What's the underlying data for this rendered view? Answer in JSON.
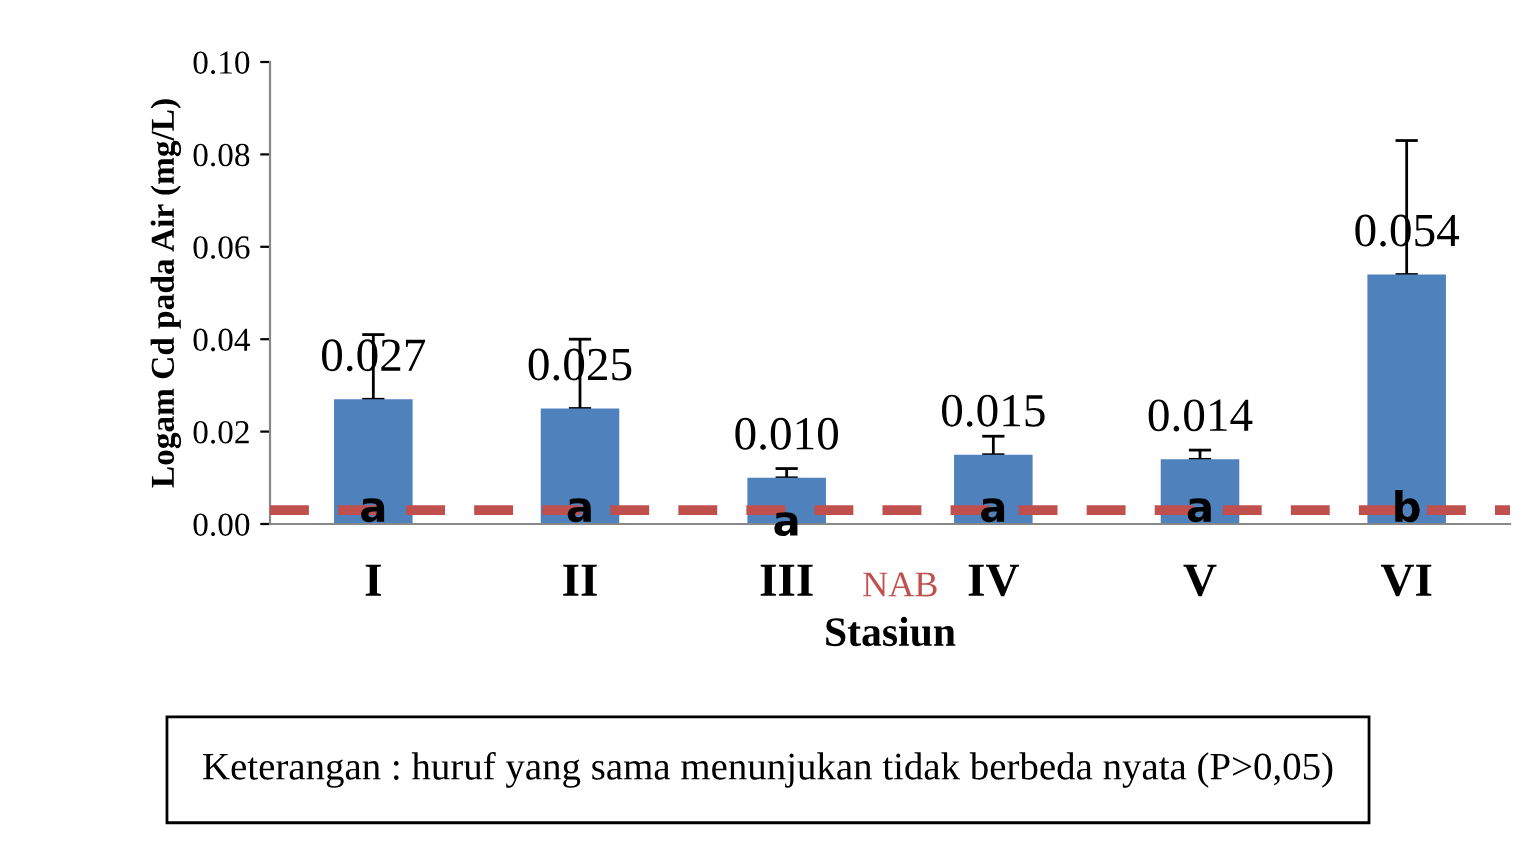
{
  "chart_data": {
    "type": "bar",
    "xlabel": "Stasiun",
    "ylabel": "Logam Cd pada Air (mg/L)",
    "categories": [
      "I",
      "II",
      "III",
      "IV",
      "V",
      "VI"
    ],
    "values": [
      0.027,
      0.025,
      0.01,
      0.015,
      0.014,
      0.054
    ],
    "color": "#4f81bd",
    "errors": [
      [
        0.027,
        0.041
      ],
      [
        0.025,
        0.04
      ],
      [
        0.01,
        0.012
      ],
      [
        0.015,
        0.019
      ],
      [
        0.014,
        0.016
      ],
      [
        0.054,
        0.083
      ]
    ],
    "value_labels": [
      "0.027",
      "0.025",
      "0.010",
      "0.015",
      "0.014",
      "0.054"
    ],
    "ylim": [
      0,
      0.1
    ],
    "yticks": [
      {
        "value": 0,
        "label": "0.00"
      },
      {
        "value": 0.02,
        "label": "0.02"
      },
      {
        "value": 0.04,
        "label": "0.04"
      },
      {
        "value": 0.06,
        "label": "0.06"
      },
      {
        "value": 0.08,
        "label": "0.08"
      },
      {
        "value": 0.1,
        "label": "0.10"
      }
    ],
    "ref_lines": [
      {
        "axis": "y",
        "value": 0.003,
        "label": "NAB",
        "color": "#c0504d",
        "line_style": "dashed"
      }
    ],
    "annotations": [
      {
        "text": "a",
        "x": "I",
        "y": 0.003
      },
      {
        "text": "a",
        "x": "II",
        "y": 0.003
      },
      {
        "text": "a",
        "x": "III",
        "y": 0
      },
      {
        "text": "a",
        "x": "IV",
        "y": 0.003
      },
      {
        "text": "a",
        "x": "V",
        "y": 0.003
      },
      {
        "text": "b",
        "x": "VI",
        "y": 0.003
      },
      "Keterangan : huruf yang sama menunjukan tidak berbeda nyata (P>0,05)"
    ],
    "grid": false
  }
}
